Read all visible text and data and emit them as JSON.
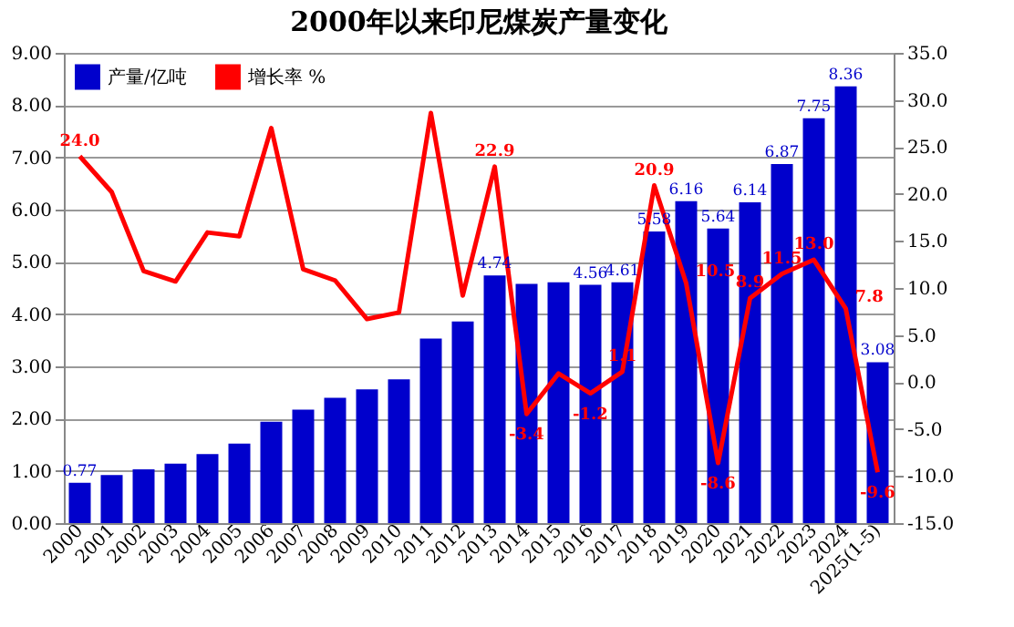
{
  "chart_data": {
    "type": "bar",
    "title": "2000年以来印尼煤炭产量变化",
    "categories": [
      "2000",
      "2001",
      "2002",
      "2003",
      "2004",
      "2005",
      "2006",
      "2007",
      "2008",
      "2009",
      "2010",
      "2011",
      "2012",
      "2013",
      "2014",
      "2015",
      "2016",
      "2017",
      "2018",
      "2019",
      "2020",
      "2021",
      "2022",
      "2023",
      "2024",
      "2025(1-5)"
    ],
    "series": [
      {
        "name": "产量/亿吨",
        "color": "#0000cc",
        "values": [
          0.77,
          0.92,
          1.03,
          1.14,
          1.32,
          1.52,
          1.94,
          2.17,
          2.4,
          2.56,
          2.75,
          3.53,
          3.86,
          4.74,
          4.58,
          4.61,
          4.56,
          4.61,
          5.58,
          6.16,
          5.64,
          6.14,
          6.87,
          7.75,
          8.36,
          3.08
        ],
        "value_labels": [
          "0.77",
          null,
          null,
          null,
          null,
          null,
          null,
          null,
          null,
          null,
          null,
          null,
          null,
          "4.74",
          null,
          null,
          "4.56",
          "4.61",
          "5.58",
          "6.16",
          "5.64",
          "6.14",
          "6.87",
          "7.75",
          "8.36",
          "3.08"
        ]
      },
      {
        "name": "增长率 %",
        "type": "line",
        "axis": "y2",
        "color": "#ff0000",
        "values": [
          24.0,
          20.2,
          11.8,
          10.7,
          15.9,
          15.5,
          27.0,
          12.0,
          10.8,
          6.7,
          7.4,
          28.6,
          9.2,
          22.9,
          -3.4,
          0.9,
          -1.2,
          1.1,
          20.9,
          10.5,
          -8.6,
          8.9,
          11.5,
          13.0,
          7.8,
          -9.6
        ],
        "value_labels": [
          "24.0",
          null,
          null,
          null,
          null,
          null,
          null,
          null,
          null,
          null,
          null,
          null,
          null,
          "22.9",
          "-3.4",
          null,
          "-1.2",
          "1.1",
          "20.9",
          "10.5",
          "-8.6",
          "8.9",
          "11.5",
          "13.0",
          "7.8",
          "-9.6"
        ]
      }
    ],
    "ylim": [
      0,
      9
    ],
    "yticks": [
      {
        "value": 0,
        "label": "0.00"
      },
      {
        "value": 1,
        "label": "1.00"
      },
      {
        "value": 2,
        "label": "2.00"
      },
      {
        "value": 3,
        "label": "3.00"
      },
      {
        "value": 4,
        "label": "4.00"
      },
      {
        "value": 5,
        "label": "5.00"
      },
      {
        "value": 6,
        "label": "6.00"
      },
      {
        "value": 7,
        "label": "7.00"
      },
      {
        "value": 8,
        "label": "8.00"
      },
      {
        "value": 9,
        "label": "9.00"
      }
    ],
    "y2lim": [
      -15,
      35
    ],
    "y2ticks": [
      {
        "value": -15,
        "label": "-15.0"
      },
      {
        "value": -10,
        "label": "-10.0"
      },
      {
        "value": -5,
        "label": "-5.0"
      },
      {
        "value": 0,
        "label": "0.0"
      },
      {
        "value": 5,
        "label": "5.0"
      },
      {
        "value": 10,
        "label": "10.0"
      },
      {
        "value": 15,
        "label": "15.0"
      },
      {
        "value": 20,
        "label": "20.0"
      },
      {
        "value": 25,
        "label": "25.0"
      },
      {
        "value": 30,
        "label": "30.0"
      },
      {
        "value": 35,
        "label": "35.0"
      }
    ],
    "grid": "y",
    "legend": "top left"
  }
}
